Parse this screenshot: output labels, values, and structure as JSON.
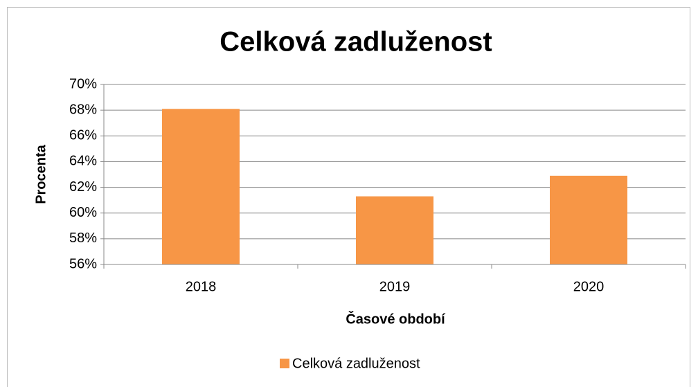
{
  "chart_data": {
    "type": "bar",
    "title": "Celková zadluženost",
    "x_label": "Časové období",
    "y_label": "Procenta",
    "categories": [
      "2018",
      "2019",
      "2020"
    ],
    "series": [
      {
        "name": "Celková zadluženost",
        "color": "#f79646",
        "values": [
          68.1,
          61.3,
          62.9
        ]
      }
    ],
    "ylim": [
      56,
      70
    ],
    "yticks": [
      {
        "value": 56,
        "label": "56%"
      },
      {
        "value": 58,
        "label": "58%"
      },
      {
        "value": 60,
        "label": "60%"
      },
      {
        "value": 62,
        "label": "62%"
      },
      {
        "value": 64,
        "label": "64%"
      },
      {
        "value": 66,
        "label": "66%"
      },
      {
        "value": 68,
        "label": "68%"
      },
      {
        "value": 70,
        "label": "70%"
      }
    ],
    "grid": true,
    "legend": "bottom"
  }
}
